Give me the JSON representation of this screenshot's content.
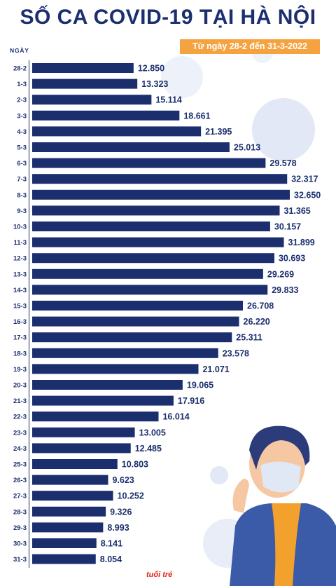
{
  "header": {
    "title": "SỐ CA COVID-19 TẠI HÀ NỘI",
    "subtitle": "Từ ngày 28-2 đến 31-3-2022",
    "logo_text": "tuổi trẻ"
  },
  "colors": {
    "bar": "#1b2f6e",
    "accent": "#f4a340",
    "title": "#1b2f6e"
  },
  "chart_data": {
    "type": "bar",
    "orientation": "horizontal",
    "ylabel": "NGÀY",
    "categories": [
      "28-2",
      "1-3",
      "2-3",
      "3-3",
      "4-3",
      "5-3",
      "6-3",
      "7-3",
      "8-3",
      "9-3",
      "10-3",
      "11-3",
      "12-3",
      "13-3",
      "14-3",
      "15-3",
      "16-3",
      "17-3",
      "18-3",
      "19-3",
      "20-3",
      "21-3",
      "22-3",
      "23-3",
      "24-3",
      "25-3",
      "26-3",
      "27-3",
      "28-3",
      "29-3",
      "30-3",
      "31-3"
    ],
    "values": [
      12850,
      13323,
      15114,
      18661,
      21395,
      25013,
      29578,
      32317,
      32650,
      31365,
      30157,
      31899,
      30693,
      29269,
      29833,
      26708,
      26220,
      25311,
      23578,
      21071,
      19065,
      17916,
      16014,
      13005,
      12485,
      10803,
      9623,
      10252,
      9326,
      8993,
      8141,
      8054
    ],
    "value_labels": [
      "12.850",
      "13.323",
      "15.114",
      "18.661",
      "21.395",
      "25.013",
      "29.578",
      "32.317",
      "32.650",
      "31.365",
      "30.157",
      "31.899",
      "30.693",
      "29.269",
      "29.833",
      "26.708",
      "26.220",
      "25.311",
      "23.578",
      "21.071",
      "19.065",
      "17.916",
      "16.014",
      "13.005",
      "12.485",
      "10.803",
      "9.623",
      "10.252",
      "9.326",
      "8.993",
      "8.141",
      "8.054"
    ],
    "grid": false
  }
}
